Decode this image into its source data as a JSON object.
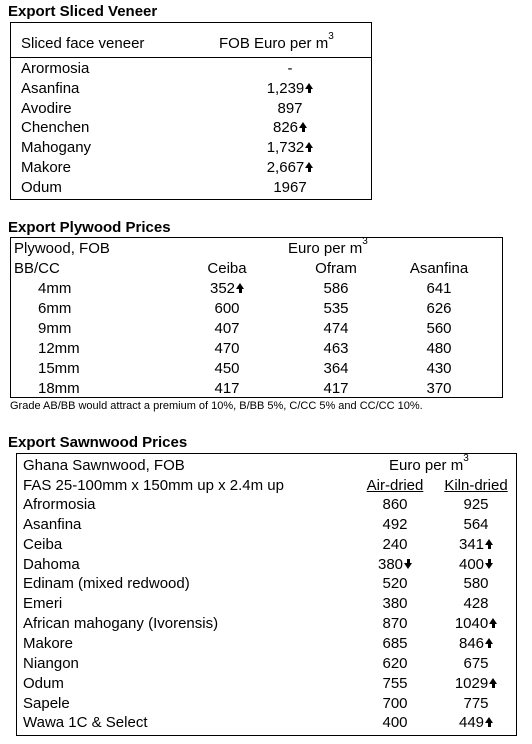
{
  "veneer": {
    "title": "Export Sliced Veneer",
    "col1": "Sliced face veneer",
    "col2": "FOB Euro per m",
    "col2_sup": "3",
    "rows": [
      {
        "name": "Arormosia",
        "value": "-",
        "trend": ""
      },
      {
        "name": "Asanfina",
        "value": "1,239",
        "trend": "up"
      },
      {
        "name": "Avodire",
        "value": "897",
        "trend": ""
      },
      {
        "name": "Chenchen",
        "value": "826",
        "trend": "up"
      },
      {
        "name": "Mahogany",
        "value": "1,732",
        "trend": "up"
      },
      {
        "name": "Makore",
        "value": "2,667",
        "trend": "up"
      },
      {
        "name": "Odum",
        "value": "1967",
        "trend": ""
      }
    ]
  },
  "plywood": {
    "title": "Export Plywood Prices",
    "label": "Plywood, FOB",
    "unit": "Euro per m",
    "unit_sup": "3",
    "grade": "BB/CC",
    "cols": [
      "Ceiba",
      "Ofram",
      "Asanfina"
    ],
    "rows": [
      {
        "size": "4mm",
        "ceiba": "352",
        "ceiba_trend": "up",
        "ofram": "586",
        "asanfina": "641"
      },
      {
        "size": "6mm",
        "ceiba": "600",
        "ceiba_trend": "",
        "ofram": "535",
        "asanfina": "626"
      },
      {
        "size": "9mm",
        "ceiba": "407",
        "ceiba_trend": "",
        "ofram": "474",
        "asanfina": "560"
      },
      {
        "size": "12mm",
        "ceiba": "470",
        "ceiba_trend": "",
        "ofram": "463",
        "asanfina": "480"
      },
      {
        "size": "15mm",
        "ceiba": "450",
        "ceiba_trend": "",
        "ofram": "364",
        "asanfina": "430"
      },
      {
        "size": "18mm",
        "ceiba": "417",
        "ceiba_trend": "",
        "ofram": "417",
        "asanfina": "370"
      }
    ],
    "note": "Grade AB/BB would attract a premium of 10%, B/BB 5%, C/CC 5% and CC/CC 10%."
  },
  "sawnwood": {
    "title": "Export Sawnwood Prices",
    "label": "Ghana Sawnwood, FOB",
    "unit": "Euro per m",
    "unit_sup": "3",
    "spec": "FAS 25-100mm x 150mm up x 2.4m up",
    "col_air": "Air-dried",
    "col_kiln": "Kiln-dried",
    "rows": [
      {
        "name": "Afrormosia",
        "air": "860",
        "air_trend": "",
        "kiln": "925",
        "kiln_trend": ""
      },
      {
        "name": "Asanfina",
        "air": "492",
        "air_trend": "",
        "kiln": "564",
        "kiln_trend": ""
      },
      {
        "name": "Ceiba",
        "air": "240",
        "air_trend": "",
        "kiln": "341",
        "kiln_trend": "up"
      },
      {
        "name": "Dahoma",
        "air": "380",
        "air_trend": "down",
        "kiln": "400",
        "kiln_trend": "down"
      },
      {
        "name": "Edinam (mixed redwood)",
        "air": "520",
        "air_trend": "",
        "kiln": "580",
        "kiln_trend": ""
      },
      {
        "name": "Emeri",
        "air": "380",
        "air_trend": "",
        "kiln": "428",
        "kiln_trend": ""
      },
      {
        "name": "African mahogany (Ivorensis)",
        "air": "870",
        "air_trend": "",
        "kiln": "1040",
        "kiln_trend": "up"
      },
      {
        "name": "Makore",
        "air": "685",
        "air_trend": "",
        "kiln": "846",
        "kiln_trend": "up"
      },
      {
        "name": "Niangon",
        "air": "620",
        "air_trend": "",
        "kiln": "675",
        "kiln_trend": ""
      },
      {
        "name": "Odum",
        "air": "755",
        "air_trend": "",
        "kiln": "1029",
        "kiln_trend": "up"
      },
      {
        "name": "Sapele",
        "air": "700",
        "air_trend": "",
        "kiln": "775",
        "kiln_trend": ""
      },
      {
        "name": "Wawa 1C & Select",
        "air": "400",
        "air_trend": "",
        "kiln": "449",
        "kiln_trend": "up"
      }
    ]
  }
}
